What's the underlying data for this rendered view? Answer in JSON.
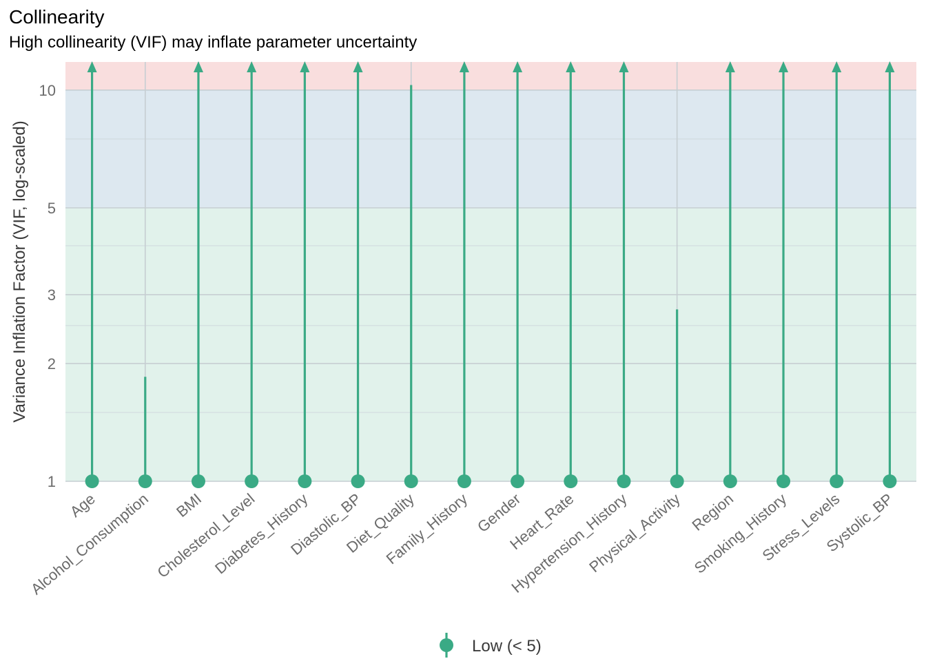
{
  "chart_data": {
    "type": "lollipop",
    "title": "Collinearity",
    "subtitle": "High collinearity (VIF) may inflate parameter uncertainty",
    "ylabel": "Variance Inflation Factor (VIF, log-scaled)",
    "xlabel": "",
    "y_scale": "log",
    "ylim": [
      1,
      11.8
    ],
    "y_ticks": [
      1,
      2,
      3,
      5,
      10
    ],
    "y_minor_ticks": [
      1.5,
      2.5,
      4,
      7.5
    ],
    "zones": [
      {
        "name": "low",
        "from": 1,
        "to": 5,
        "color": "#e1f2eb"
      },
      {
        "name": "moderate",
        "from": 5,
        "to": 10,
        "color": "#dde8f0"
      },
      {
        "name": "high",
        "from": 10,
        "to": 11.8,
        "color": "#f9dede"
      }
    ],
    "categories": [
      "Age",
      "Alcohol_Consumption",
      "BMI",
      "Cholesterol_Level",
      "Diabetes_History",
      "Diastolic_BP",
      "Diet_Quality",
      "Family_History",
      "Gender",
      "Heart_Rate",
      "Hypertension_History",
      "Physical_Activity",
      "Region",
      "Smoking_History",
      "Stress_Levels",
      "Systolic_BP"
    ],
    "values": [
      null,
      1.85,
      null,
      null,
      null,
      null,
      10.3,
      null,
      null,
      null,
      null,
      2.75,
      null,
      null,
      null,
      null
    ],
    "extends_beyond_axis": [
      true,
      false,
      true,
      true,
      true,
      true,
      false,
      true,
      true,
      true,
      true,
      false,
      true,
      true,
      true,
      true
    ],
    "series_color": "#3aaa85",
    "legend": {
      "position": "bottom",
      "entries": [
        {
          "label": "Low (< 5)",
          "color": "#3aaa85"
        }
      ]
    },
    "grid": true
  }
}
